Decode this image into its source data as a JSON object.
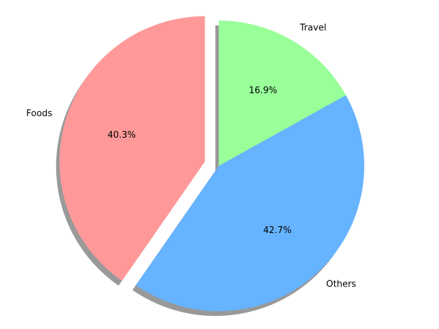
{
  "chart_data": {
    "type": "pie",
    "title": "",
    "slices": [
      {
        "label": "Foods",
        "value": 40.3,
        "pct_label": "40.3%",
        "color": "#ff9999",
        "exploded": true
      },
      {
        "label": "Others",
        "value": 42.7,
        "pct_label": "42.7%",
        "color": "#66b3ff",
        "exploded": false
      },
      {
        "label": "Travel",
        "value": 16.9,
        "pct_label": "16.9%",
        "color": "#99ff99",
        "exploded": false
      }
    ],
    "start_angle_deg": 90,
    "direction": "counterclockwise",
    "shadow": true,
    "legend": "none"
  }
}
